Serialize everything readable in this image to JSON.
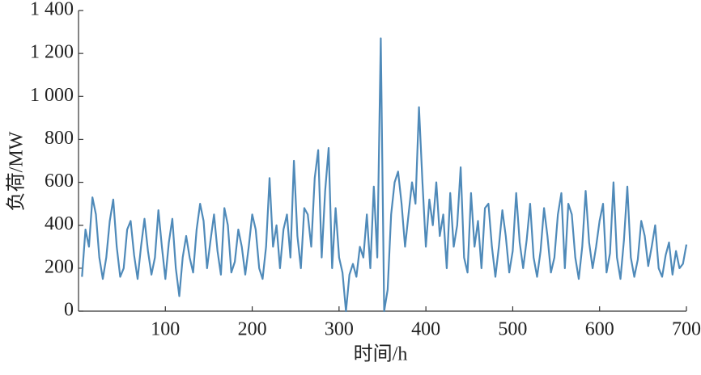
{
  "chart_data": {
    "type": "line",
    "xlabel": "时间/h",
    "ylabel": "负荷/MW",
    "color": "#4f8ab9",
    "xlim": [
      0,
      700
    ],
    "xticks": [
      100,
      200,
      300,
      400,
      500,
      600,
      700
    ],
    "ylim": [
      0,
      1400
    ],
    "yticks": [
      0,
      200,
      400,
      600,
      800,
      {
        "value": 1000,
        "label": "1 000"
      },
      {
        "value": 1200,
        "label": "1 200"
      },
      {
        "value": 1400,
        "label": "1 400"
      }
    ],
    "x": [
      4,
      8,
      12,
      16,
      20,
      24,
      28,
      32,
      36,
      40,
      44,
      48,
      52,
      56,
      60,
      64,
      68,
      72,
      76,
      80,
      84,
      88,
      92,
      96,
      100,
      104,
      108,
      112,
      116,
      120,
      124,
      128,
      132,
      136,
      140,
      144,
      148,
      152,
      156,
      160,
      164,
      168,
      172,
      176,
      180,
      184,
      188,
      192,
      196,
      200,
      204,
      208,
      212,
      216,
      220,
      224,
      228,
      232,
      236,
      240,
      244,
      248,
      252,
      256,
      260,
      264,
      268,
      272,
      276,
      280,
      284,
      288,
      292,
      296,
      300,
      304,
      308,
      312,
      316,
      320,
      324,
      328,
      332,
      336,
      340,
      344,
      348,
      352,
      356,
      360,
      364,
      368,
      372,
      376,
      380,
      384,
      388,
      392,
      396,
      400,
      404,
      408,
      412,
      416,
      420,
      424,
      428,
      432,
      436,
      440,
      444,
      448,
      452,
      456,
      460,
      464,
      468,
      472,
      476,
      480,
      484,
      488,
      492,
      496,
      500,
      504,
      508,
      512,
      516,
      520,
      524,
      528,
      532,
      536,
      540,
      544,
      548,
      552,
      556,
      560,
      564,
      568,
      572,
      576,
      580,
      584,
      588,
      592,
      596,
      600,
      604,
      608,
      612,
      616,
      620,
      624,
      628,
      632,
      636,
      640,
      644,
      648,
      652,
      656,
      660,
      664,
      668,
      672,
      676,
      680,
      684,
      688,
      692,
      696,
      700
    ],
    "values": [
      160,
      380,
      300,
      530,
      450,
      250,
      150,
      250,
      420,
      520,
      300,
      160,
      200,
      380,
      420,
      260,
      150,
      300,
      430,
      280,
      170,
      250,
      470,
      300,
      150,
      320,
      430,
      200,
      70,
      250,
      350,
      250,
      180,
      380,
      500,
      420,
      200,
      330,
      450,
      280,
      170,
      480,
      400,
      180,
      230,
      380,
      300,
      170,
      300,
      450,
      380,
      200,
      150,
      300,
      620,
      300,
      400,
      200,
      380,
      450,
      250,
      700,
      350,
      200,
      480,
      450,
      300,
      620,
      750,
      250,
      560,
      760,
      200,
      480,
      250,
      180,
      0,
      170,
      220,
      160,
      300,
      250,
      450,
      200,
      580,
      250,
      1270,
      0,
      100,
      450,
      600,
      650,
      500,
      300,
      450,
      600,
      500,
      950,
      600,
      300,
      520,
      400,
      600,
      350,
      450,
      200,
      550,
      300,
      400,
      670,
      250,
      180,
      550,
      300,
      420,
      200,
      480,
      500,
      300,
      160,
      300,
      470,
      350,
      180,
      280,
      550,
      320,
      200,
      330,
      500,
      250,
      160,
      280,
      480,
      350,
      180,
      250,
      450,
      550,
      200,
      500,
      450,
      250,
      150,
      300,
      560,
      320,
      200,
      300,
      420,
      500,
      180,
      270,
      600,
      250,
      150,
      330,
      580,
      250,
      160,
      240,
      420,
      350,
      210,
      300,
      400,
      200,
      160,
      260,
      320,
      170,
      280,
      200,
      220,
      310
    ]
  }
}
